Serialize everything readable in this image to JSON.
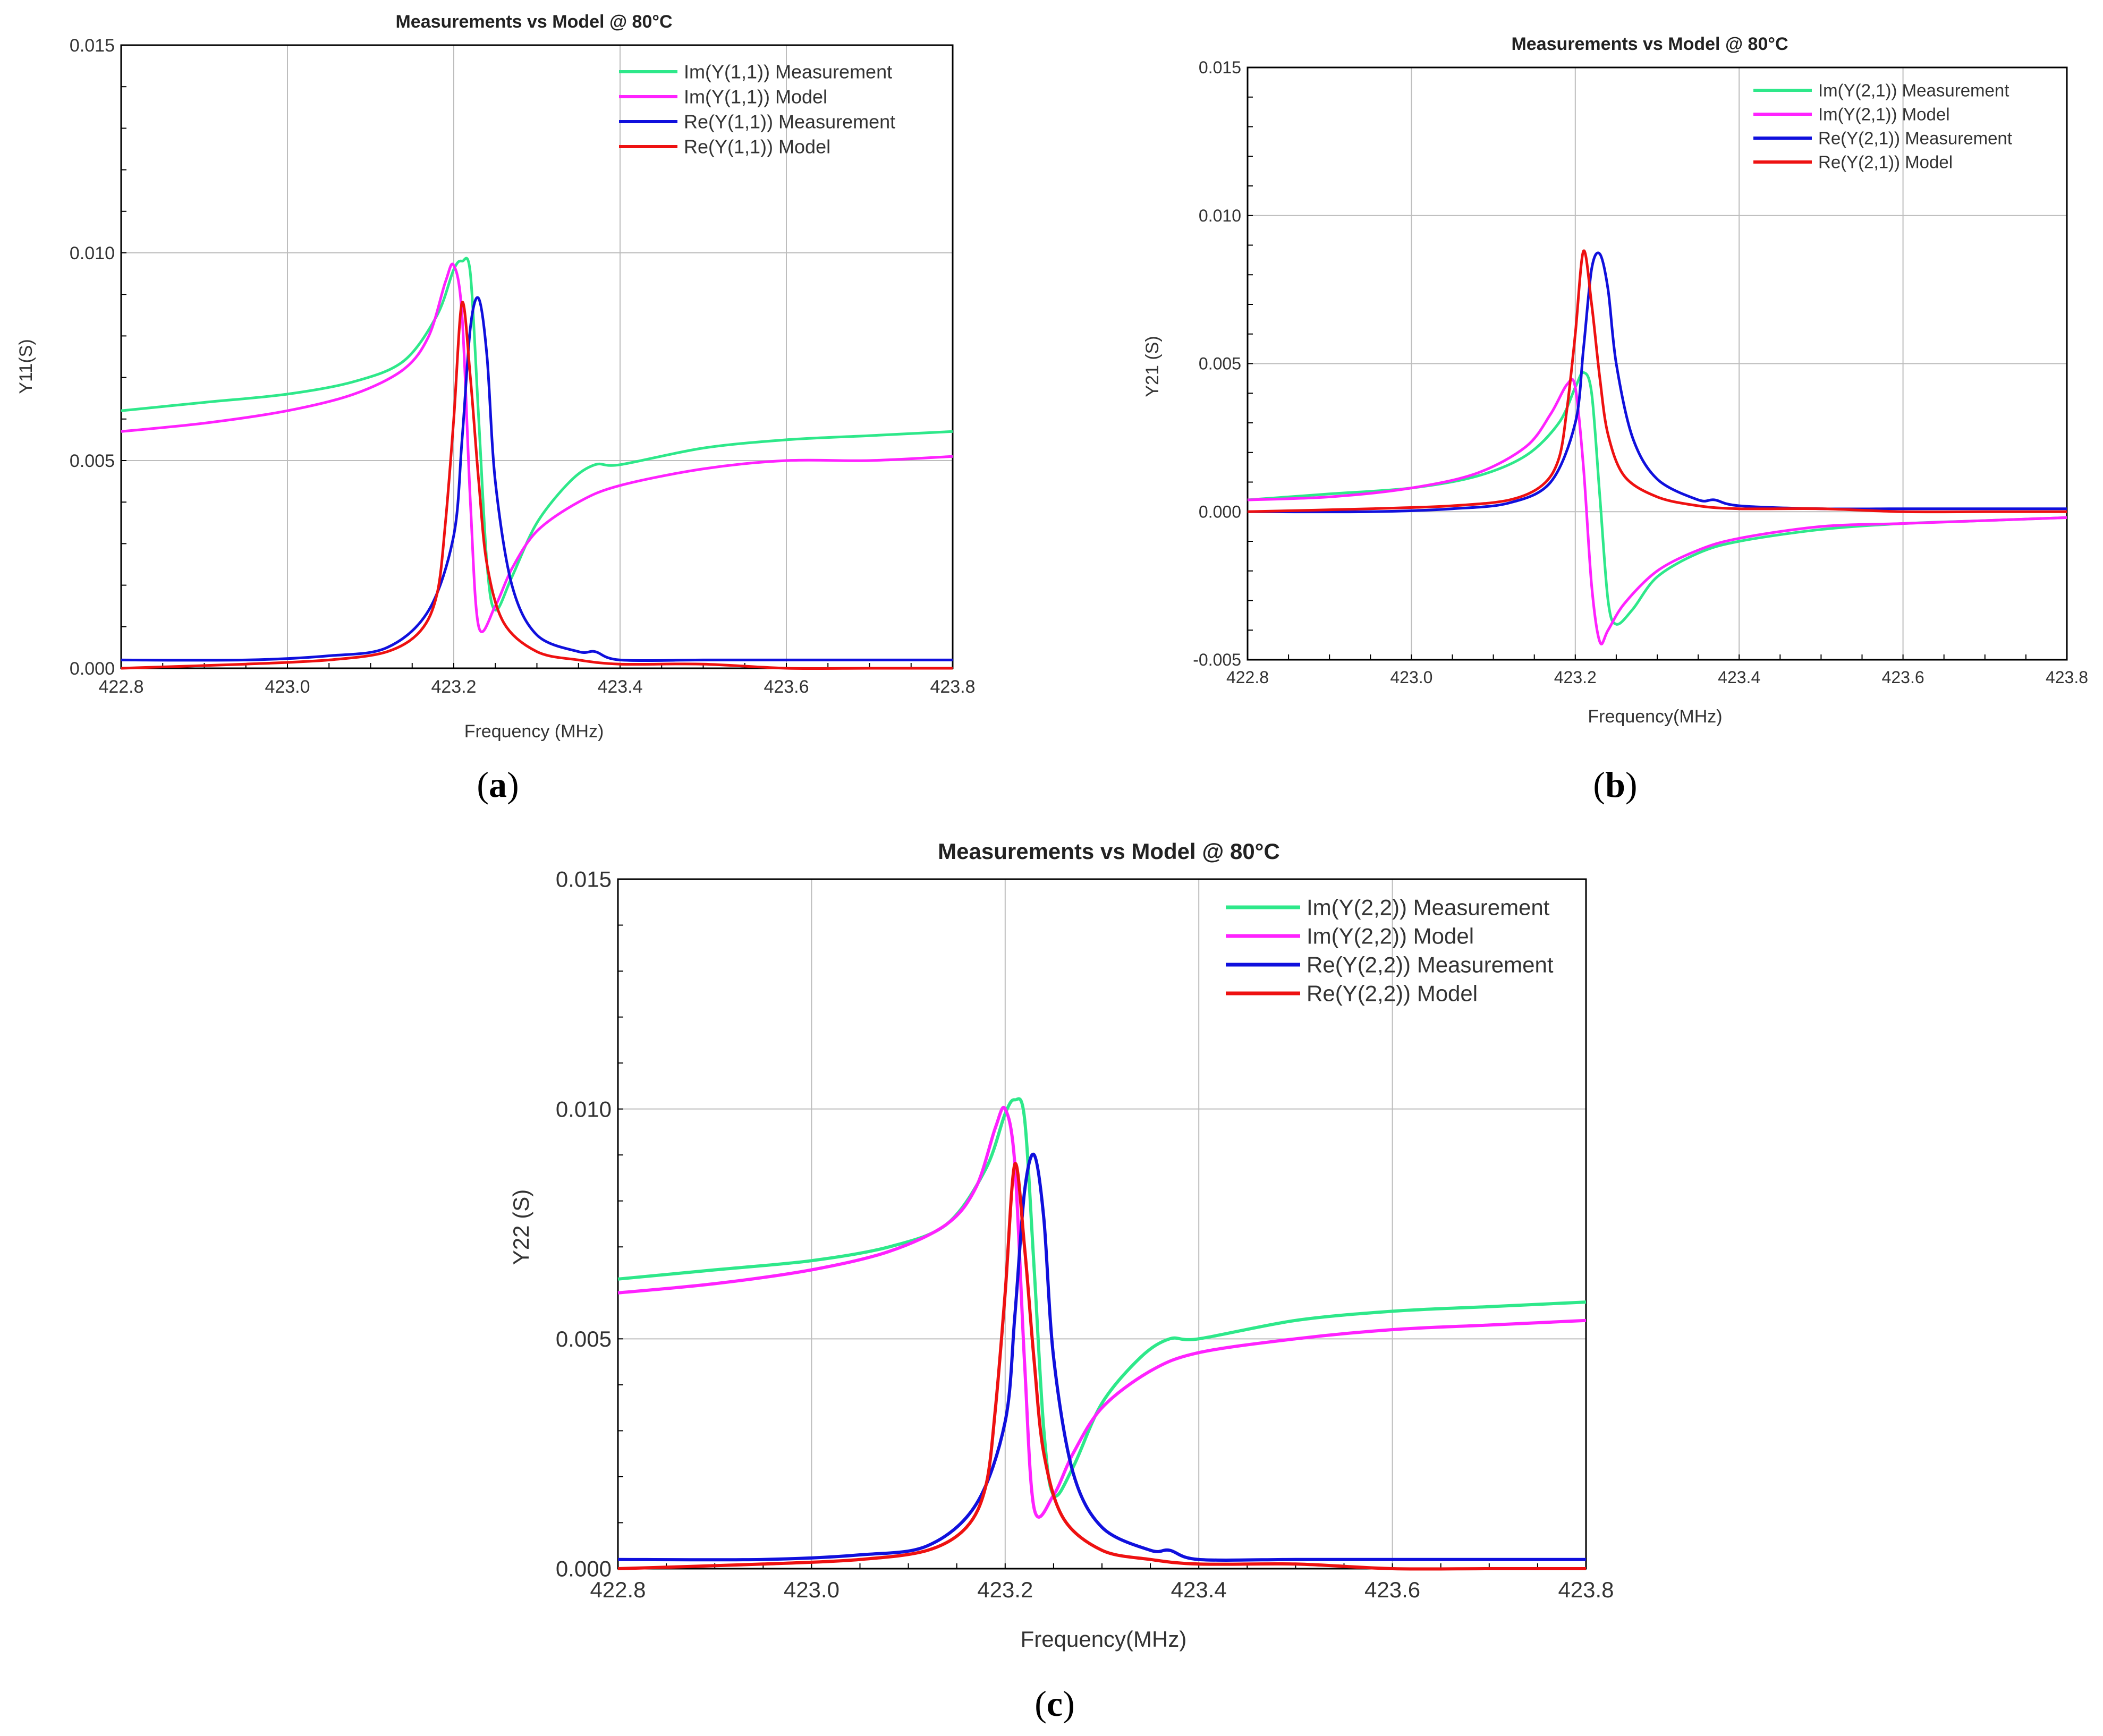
{
  "figure": {
    "chart_ids": [
      "a",
      "b",
      "c"
    ]
  },
  "colors": {
    "im_measurement": "#2ee88a",
    "im_model": "#ff22ff",
    "re_measurement": "#1010dd",
    "re_model": "#ee1111",
    "grid": "#bdbdbd",
    "axis": "#000000"
  },
  "chart_data": [
    {
      "id": "a",
      "type": "line",
      "caption_letter": "a",
      "title": "Measurements vs Model @ 80°C",
      "xlabel": "Frequency (MHz)",
      "ylabel": "Y11(S)",
      "xlim": [
        422.8,
        423.8
      ],
      "ylim": [
        0.0,
        0.015
      ],
      "xticks": [
        422.8,
        423.0,
        423.2,
        423.4,
        423.6,
        423.8
      ],
      "xtick_labels": [
        "422.8",
        "423.0",
        "423.2",
        "423.4",
        "423.6",
        "423.8"
      ],
      "yticks": [
        0.0,
        0.005,
        0.01,
        0.015
      ],
      "ytick_labels": [
        "0.000",
        "0.005",
        "0.010",
        "0.015"
      ],
      "grid": true,
      "legend_position": "top-right",
      "series": [
        {
          "name": "Im(Y(1,1)) Measurement",
          "color_key": "im_measurement",
          "x": [
            422.8,
            422.9,
            423.0,
            423.08,
            423.14,
            423.18,
            423.2,
            423.21,
            423.22,
            423.23,
            423.24,
            423.25,
            423.27,
            423.3,
            423.34,
            423.37,
            423.4,
            423.5,
            423.6,
            423.7,
            423.8
          ],
          "y": [
            0.0062,
            0.0064,
            0.0066,
            0.0069,
            0.0074,
            0.0085,
            0.0096,
            0.0098,
            0.0095,
            0.006,
            0.0025,
            0.0014,
            0.0022,
            0.0035,
            0.0045,
            0.0049,
            0.0049,
            0.0053,
            0.0055,
            0.0056,
            0.0057
          ]
        },
        {
          "name": "Im(Y(1,1)) Model",
          "color_key": "im_model",
          "x": [
            422.8,
            422.9,
            423.0,
            423.08,
            423.14,
            423.17,
            423.19,
            423.2,
            423.21,
            423.22,
            423.23,
            423.25,
            423.27,
            423.3,
            423.35,
            423.4,
            423.5,
            423.6,
            423.7,
            423.8
          ],
          "y": [
            0.0057,
            0.0059,
            0.0062,
            0.0066,
            0.0072,
            0.008,
            0.0093,
            0.0097,
            0.0085,
            0.004,
            0.001,
            0.0015,
            0.0024,
            0.0033,
            0.004,
            0.0044,
            0.0048,
            0.005,
            0.005,
            0.0051
          ]
        },
        {
          "name": "Re(Y(1,1)) Measurement",
          "color_key": "re_measurement",
          "x": [
            422.8,
            422.95,
            423.05,
            423.12,
            423.17,
            423.2,
            423.21,
            423.22,
            423.23,
            423.24,
            423.25,
            423.27,
            423.3,
            423.35,
            423.37,
            423.4,
            423.5,
            423.6,
            423.7,
            423.8
          ],
          "y": [
            0.0002,
            0.0002,
            0.0003,
            0.0005,
            0.0014,
            0.0032,
            0.0055,
            0.0082,
            0.0089,
            0.0075,
            0.0045,
            0.002,
            0.0008,
            0.0004,
            0.0004,
            0.0002,
            0.0002,
            0.0002,
            0.0002,
            0.0002
          ]
        },
        {
          "name": "Re(Y(1,1)) Model",
          "color_key": "re_model",
          "x": [
            422.8,
            422.95,
            423.05,
            423.12,
            423.16,
            423.18,
            423.19,
            423.2,
            423.21,
            423.22,
            423.23,
            423.24,
            423.26,
            423.3,
            423.35,
            423.4,
            423.5,
            423.6,
            423.7,
            423.8
          ],
          "y": [
            0.0,
            0.0001,
            0.0002,
            0.0004,
            0.0009,
            0.0018,
            0.0035,
            0.006,
            0.0088,
            0.007,
            0.0045,
            0.0025,
            0.0011,
            0.0004,
            0.0002,
            0.0001,
            0.0001,
            0.0,
            0.0,
            0.0
          ]
        }
      ]
    },
    {
      "id": "b",
      "type": "line",
      "caption_letter": "b",
      "title": "Measurements vs Model @ 80°C",
      "xlabel": "Frequency(MHz)",
      "ylabel": "Y21 (S)",
      "xlim": [
        422.8,
        423.8
      ],
      "ylim": [
        -0.005,
        0.015
      ],
      "xticks": [
        422.8,
        423.0,
        423.2,
        423.4,
        423.6,
        423.8
      ],
      "xtick_labels": [
        "422.8",
        "423.0",
        "423.2",
        "423.4",
        "423.6",
        "423.8"
      ],
      "yticks": [
        -0.005,
        0.0,
        0.005,
        0.01,
        0.015
      ],
      "ytick_labels": [
        "-0.005",
        "0.000",
        "0.005",
        "0.010",
        "0.015"
      ],
      "grid": true,
      "legend_position": "top-right",
      "series": [
        {
          "name": "Im(Y(2,1)) Measurement",
          "color_key": "im_measurement",
          "x": [
            422.8,
            422.9,
            423.0,
            423.08,
            423.14,
            423.18,
            423.2,
            423.21,
            423.22,
            423.23,
            423.24,
            423.25,
            423.27,
            423.3,
            423.35,
            423.4,
            423.5,
            423.6,
            423.7,
            423.8
          ],
          "y": [
            0.0004,
            0.0006,
            0.0008,
            0.0012,
            0.0019,
            0.003,
            0.0042,
            0.0047,
            0.004,
            0.0005,
            -0.003,
            -0.0038,
            -0.0033,
            -0.0022,
            -0.0014,
            -0.001,
            -0.0006,
            -0.0004,
            -0.0003,
            -0.0002
          ]
        },
        {
          "name": "Im(Y(2,1)) Model",
          "color_key": "im_model",
          "x": [
            422.8,
            422.9,
            423.0,
            423.08,
            423.14,
            423.17,
            423.19,
            423.2,
            423.21,
            423.22,
            423.23,
            423.24,
            423.26,
            423.3,
            423.35,
            423.4,
            423.5,
            423.6,
            423.7,
            423.8
          ],
          "y": [
            0.0004,
            0.0005,
            0.0008,
            0.0013,
            0.0022,
            0.0033,
            0.0043,
            0.0042,
            0.0015,
            -0.0025,
            -0.0044,
            -0.004,
            -0.0031,
            -0.002,
            -0.0013,
            -0.0009,
            -0.0005,
            -0.0004,
            -0.0003,
            -0.0002
          ]
        },
        {
          "name": "Re(Y(2,1)) Measurement",
          "color_key": "re_measurement",
          "x": [
            422.8,
            422.95,
            423.05,
            423.12,
            423.17,
            423.2,
            423.21,
            423.22,
            423.23,
            423.24,
            423.25,
            423.27,
            423.3,
            423.35,
            423.37,
            423.4,
            423.5,
            423.6,
            423.7,
            423.8
          ],
          "y": [
            0.0,
            0.0,
            0.0001,
            0.0003,
            0.001,
            0.003,
            0.0055,
            0.0082,
            0.0087,
            0.0075,
            0.005,
            0.0025,
            0.0011,
            0.0004,
            0.0004,
            0.0002,
            0.0001,
            0.0001,
            0.0001,
            0.0001
          ]
        },
        {
          "name": "Re(Y(2,1)) Model",
          "color_key": "re_model",
          "x": [
            422.8,
            422.95,
            423.05,
            423.12,
            423.16,
            423.18,
            423.19,
            423.2,
            423.21,
            423.22,
            423.23,
            423.24,
            423.26,
            423.3,
            423.35,
            423.4,
            423.5,
            423.6,
            423.7,
            423.8
          ],
          "y": [
            0.0,
            0.0001,
            0.0002,
            0.0004,
            0.0009,
            0.0018,
            0.0035,
            0.006,
            0.0088,
            0.007,
            0.0045,
            0.0026,
            0.0012,
            0.0005,
            0.0002,
            0.0001,
            0.0001,
            0.0,
            0.0,
            0.0
          ]
        }
      ]
    },
    {
      "id": "c",
      "type": "line",
      "caption_letter": "c",
      "title": "Measurements vs Model @ 80°C",
      "xlabel": "Frequency(MHz)",
      "ylabel": "Y22 (S)",
      "xlim": [
        422.8,
        423.8
      ],
      "ylim": [
        0.0,
        0.015
      ],
      "xticks": [
        422.8,
        423.0,
        423.2,
        423.4,
        423.6,
        423.8
      ],
      "xtick_labels": [
        "422.8",
        "423.0",
        "423.2",
        "423.4",
        "423.6",
        "423.8"
      ],
      "yticks": [
        0.0,
        0.005,
        0.01,
        0.015
      ],
      "ytick_labels": [
        "0.000",
        "0.005",
        "0.010",
        "0.015"
      ],
      "grid": true,
      "legend_position": "top-right",
      "series": [
        {
          "name": "Im(Y(2,2)) Measurement",
          "color_key": "im_measurement",
          "x": [
            422.8,
            422.9,
            423.0,
            423.08,
            423.14,
            423.18,
            423.2,
            423.21,
            423.22,
            423.23,
            423.24,
            423.25,
            423.27,
            423.3,
            423.34,
            423.37,
            423.4,
            423.5,
            423.6,
            423.7,
            423.8
          ],
          "y": [
            0.0063,
            0.0065,
            0.0067,
            0.007,
            0.0075,
            0.0087,
            0.0099,
            0.0102,
            0.0098,
            0.0065,
            0.003,
            0.0016,
            0.0022,
            0.0036,
            0.0046,
            0.005,
            0.005,
            0.0054,
            0.0056,
            0.0057,
            0.0058
          ]
        },
        {
          "name": "Im(Y(2,2)) Model",
          "color_key": "im_model",
          "x": [
            422.8,
            422.9,
            423.0,
            423.08,
            423.14,
            423.17,
            423.19,
            423.2,
            423.21,
            423.22,
            423.23,
            423.25,
            423.27,
            423.3,
            423.35,
            423.4,
            423.5,
            423.6,
            423.7,
            423.8
          ],
          "y": [
            0.006,
            0.0062,
            0.0065,
            0.0069,
            0.0075,
            0.0083,
            0.0096,
            0.01,
            0.0088,
            0.0045,
            0.0013,
            0.0016,
            0.0025,
            0.0035,
            0.0043,
            0.0047,
            0.005,
            0.0052,
            0.0053,
            0.0054
          ]
        },
        {
          "name": "Re(Y(2,2)) Measurement",
          "color_key": "re_measurement",
          "x": [
            422.8,
            422.95,
            423.05,
            423.12,
            423.17,
            423.2,
            423.21,
            423.22,
            423.23,
            423.24,
            423.25,
            423.27,
            423.3,
            423.35,
            423.37,
            423.4,
            423.5,
            423.6,
            423.7,
            423.8
          ],
          "y": [
            0.0002,
            0.0002,
            0.0003,
            0.0005,
            0.0014,
            0.0032,
            0.0055,
            0.0082,
            0.009,
            0.0076,
            0.0046,
            0.0021,
            0.0009,
            0.0004,
            0.0004,
            0.0002,
            0.0002,
            0.0002,
            0.0002,
            0.0002
          ]
        },
        {
          "name": "Re(Y(2,2)) Model",
          "color_key": "re_model",
          "x": [
            422.8,
            422.95,
            423.05,
            423.12,
            423.16,
            423.18,
            423.19,
            423.2,
            423.21,
            423.22,
            423.23,
            423.24,
            423.26,
            423.3,
            423.35,
            423.4,
            423.5,
            423.6,
            423.7,
            423.8
          ],
          "y": [
            0.0,
            0.0001,
            0.0002,
            0.0004,
            0.0009,
            0.0018,
            0.0035,
            0.006,
            0.0088,
            0.007,
            0.0045,
            0.0025,
            0.0011,
            0.0004,
            0.0002,
            0.0001,
            0.0001,
            0.0,
            0.0,
            0.0
          ]
        }
      ]
    }
  ]
}
